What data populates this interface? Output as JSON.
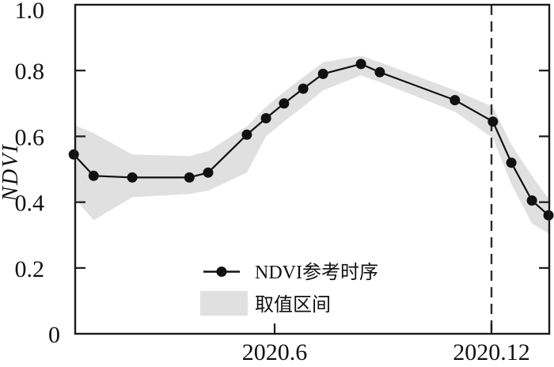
{
  "chart_data": {
    "type": "line",
    "title": "",
    "xlabel": "",
    "ylabel": "NDVI",
    "x_unit": "year.month",
    "xlim": [
      0.48,
      13.6
    ],
    "ylim": [
      0,
      1.0
    ],
    "grid": false,
    "x_ticks": [
      {
        "value": 6,
        "label": "2020.6"
      },
      {
        "value": 12,
        "label": "2020.12"
      }
    ],
    "y_ticks": [
      {
        "value": 0,
        "label": "0"
      },
      {
        "value": 0.2,
        "label": "0.2"
      },
      {
        "value": 0.4,
        "label": "0.4"
      },
      {
        "value": 0.6,
        "label": "0.6"
      },
      {
        "value": 0.8,
        "label": "0.8"
      },
      {
        "value": 1.0,
        "label": "1.0"
      }
    ],
    "dashed_vline_x": 12,
    "series": [
      {
        "name": "NDVI参考时序",
        "type": "line+marker",
        "color": "#111111",
        "x": [
          0.44,
          0.99,
          2.06,
          3.64,
          4.16,
          5.23,
          5.76,
          6.26,
          6.79,
          7.34,
          8.39,
          8.91,
          10.99,
          12.04,
          12.55,
          13.12,
          13.58
        ],
        "y": [
          0.545,
          0.48,
          0.475,
          0.475,
          0.49,
          0.605,
          0.655,
          0.7,
          0.745,
          0.79,
          0.82,
          0.795,
          0.71,
          0.645,
          0.52,
          0.405,
          0.36
        ]
      }
    ],
    "band": {
      "name": "取值区间",
      "color": "#e0e0e0",
      "x": [
        0.44,
        0.99,
        2.06,
        3.64,
        4.16,
        5.23,
        5.76,
        6.26,
        6.79,
        7.34,
        8.39,
        8.91,
        10.99,
        12.04,
        12.55,
        13.12,
        13.58
      ],
      "upper": [
        0.635,
        0.61,
        0.545,
        0.54,
        0.555,
        0.63,
        0.69,
        0.735,
        0.78,
        0.825,
        0.845,
        0.825,
        0.74,
        0.69,
        0.575,
        0.48,
        0.41
      ],
      "lower": [
        0.415,
        0.345,
        0.415,
        0.425,
        0.435,
        0.49,
        0.6,
        0.645,
        0.69,
        0.74,
        0.785,
        0.765,
        0.675,
        0.595,
        0.455,
        0.335,
        0.305
      ]
    },
    "legend": {
      "position": "lower-center",
      "entries": [
        {
          "label": "NDVI参考时序",
          "marker": "line-dot"
        },
        {
          "label": "取值区间",
          "marker": "filled-box"
        }
      ]
    },
    "axis_color": "#1a1a1a",
    "dash_color": "#2b2b2b"
  }
}
